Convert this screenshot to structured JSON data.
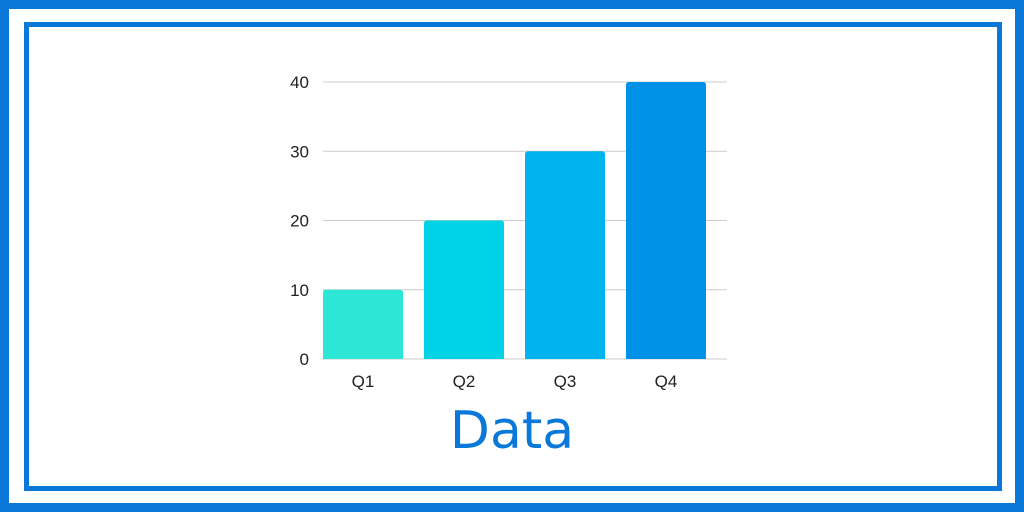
{
  "caption": "Data",
  "colors": {
    "frame": "#0a78d8",
    "caption": "#0a78d8",
    "grid": "#cccccc",
    "bars": [
      "#2ee6d6",
      "#00d2e6",
      "#00b4f0",
      "#0091e6"
    ]
  },
  "chart_data": {
    "type": "bar",
    "categories": [
      "Q1",
      "Q2",
      "Q3",
      "Q4"
    ],
    "values": [
      10,
      20,
      30,
      40
    ],
    "ylim": [
      0,
      40
    ],
    "yticks": [
      0,
      10,
      20,
      30,
      40
    ],
    "grid": true,
    "legend": "none"
  }
}
